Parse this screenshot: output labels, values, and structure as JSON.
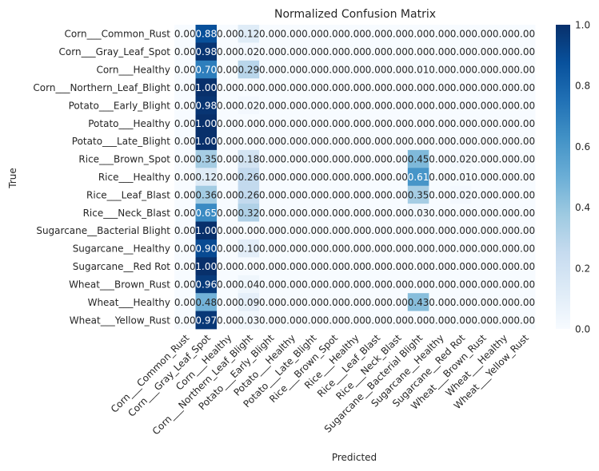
{
  "chart_data": {
    "type": "heatmap",
    "title": "Normalized Confusion Matrix",
    "xlabel": "Predicted",
    "ylabel": "True",
    "labels": [
      "Corn___Common_Rust",
      "Corn___Gray_Leaf_Spot",
      "Corn___Healthy",
      "Corn___Northern_Leaf_Blight",
      "Potato___Early_Blight",
      "Potato___Healthy",
      "Potato___Late_Blight",
      "Rice___Brown_Spot",
      "Rice___Healthy",
      "Rice___Leaf_Blast",
      "Rice___Neck_Blast",
      "Sugarcane__Bacterial Blight",
      "Sugarcane__Healthy",
      "Sugarcane__Red Rot",
      "Wheat___Brown_Rust",
      "Wheat___Healthy",
      "Wheat___Yellow_Rust"
    ],
    "matrix": [
      [
        0,
        0.88,
        0,
        0.12,
        0,
        0,
        0,
        0,
        0,
        0,
        0,
        0,
        0,
        0,
        0,
        0,
        0
      ],
      [
        0,
        0.98,
        0,
        0.02,
        0,
        0,
        0,
        0,
        0,
        0,
        0,
        0,
        0,
        0,
        0,
        0,
        0
      ],
      [
        0,
        0.7,
        0,
        0.29,
        0,
        0,
        0,
        0,
        0,
        0,
        0,
        0.01,
        0,
        0,
        0,
        0,
        0
      ],
      [
        0,
        1.0,
        0,
        0,
        0,
        0,
        0,
        0,
        0,
        0,
        0,
        0,
        0,
        0,
        0,
        0,
        0
      ],
      [
        0,
        0.98,
        0,
        0.02,
        0,
        0,
        0,
        0,
        0,
        0,
        0,
        0,
        0,
        0,
        0,
        0,
        0
      ],
      [
        0,
        1.0,
        0,
        0,
        0,
        0,
        0,
        0,
        0,
        0,
        0,
        0,
        0,
        0,
        0,
        0,
        0
      ],
      [
        0,
        1.0,
        0,
        0,
        0,
        0,
        0,
        0,
        0,
        0,
        0,
        0,
        0,
        0,
        0,
        0,
        0
      ],
      [
        0,
        0.35,
        0,
        0.18,
        0,
        0,
        0,
        0,
        0,
        0,
        0,
        0.45,
        0,
        0.02,
        0,
        0,
        0
      ],
      [
        0,
        0.12,
        0,
        0.26,
        0,
        0,
        0,
        0,
        0,
        0,
        0,
        0.61,
        0,
        0.01,
        0,
        0,
        0
      ],
      [
        0,
        0.36,
        0,
        0.26,
        0,
        0,
        0,
        0,
        0,
        0,
        0,
        0.35,
        0,
        0.02,
        0,
        0,
        0
      ],
      [
        0,
        0.65,
        0,
        0.32,
        0,
        0,
        0,
        0,
        0,
        0,
        0,
        0.03,
        0,
        0,
        0,
        0,
        0
      ],
      [
        0,
        1.0,
        0,
        0,
        0,
        0,
        0,
        0,
        0,
        0,
        0,
        0,
        0,
        0,
        0,
        0,
        0
      ],
      [
        0,
        0.9,
        0,
        0.1,
        0,
        0,
        0,
        0,
        0,
        0,
        0,
        0,
        0,
        0,
        0,
        0,
        0
      ],
      [
        0,
        1.0,
        0,
        0,
        0,
        0,
        0,
        0,
        0,
        0,
        0,
        0,
        0,
        0,
        0,
        0,
        0
      ],
      [
        0,
        0.96,
        0,
        0.04,
        0,
        0,
        0,
        0,
        0,
        0,
        0,
        0,
        0,
        0,
        0,
        0,
        0
      ],
      [
        0,
        0.48,
        0,
        0.09,
        0,
        0,
        0,
        0,
        0,
        0,
        0,
        0.43,
        0,
        0,
        0,
        0,
        0
      ],
      [
        0,
        0.97,
        0,
        0.03,
        0,
        0,
        0,
        0,
        0,
        0,
        0,
        0,
        0,
        0,
        0,
        0,
        0
      ]
    ],
    "value_format": "0.00",
    "colormap": "Blues",
    "colorbar": {
      "min": 0,
      "max": 1,
      "ticks": [
        "0.0",
        "0.2",
        "0.4",
        "0.6",
        "0.8",
        "1.0"
      ]
    },
    "grid": false
  }
}
